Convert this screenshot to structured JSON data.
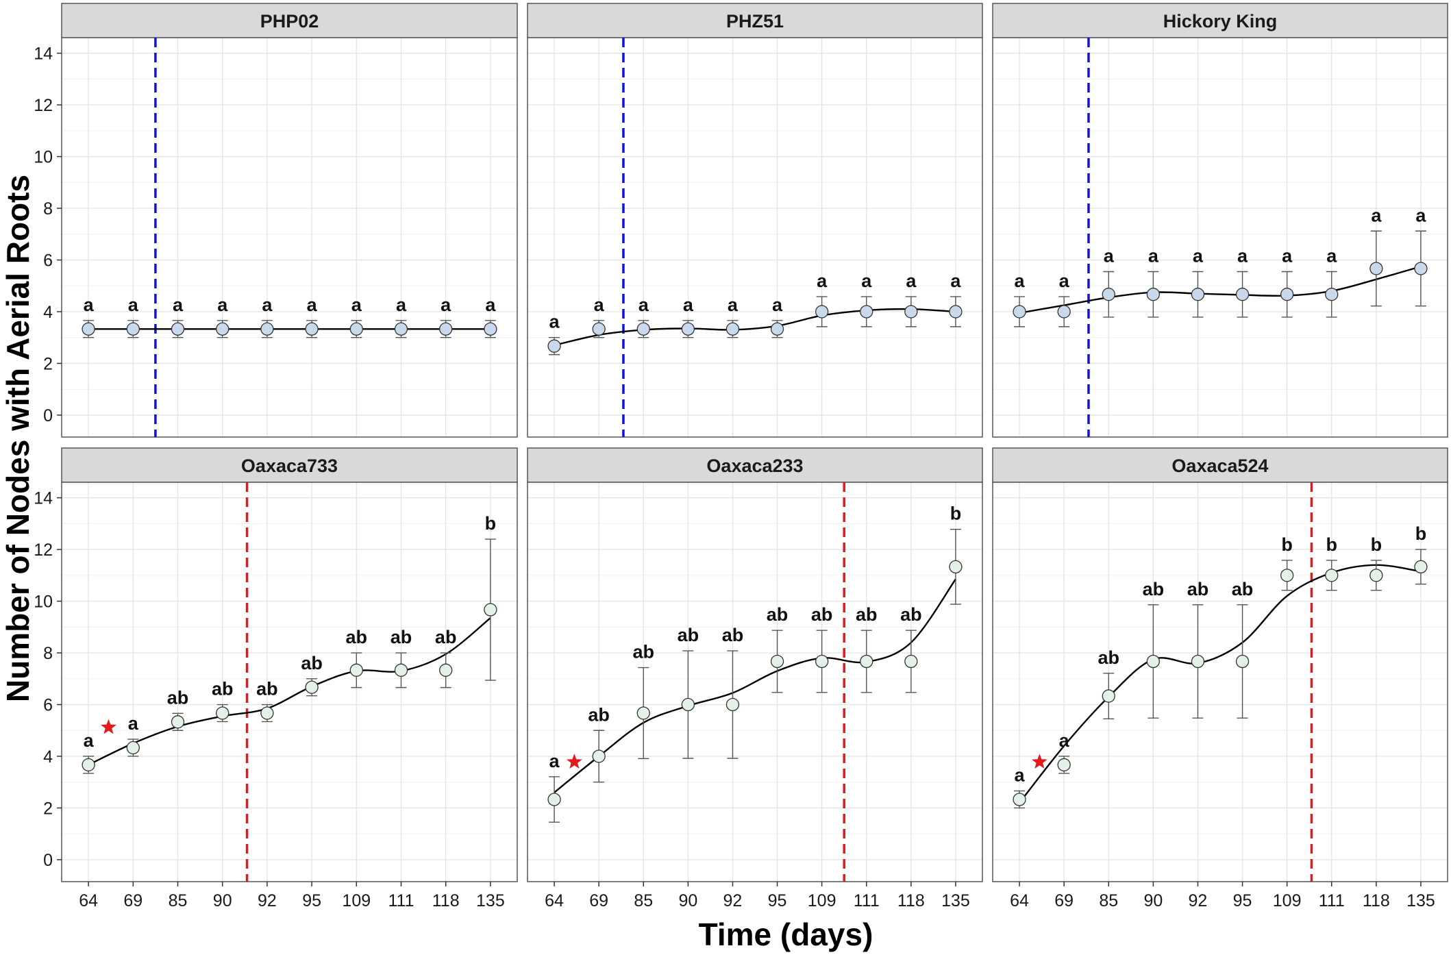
{
  "chart_data": {
    "type": "line",
    "xlabel": "Time (days)",
    "ylabel": "Number of Nodes with Aerial Roots",
    "categories": [
      "64",
      "69",
      "85",
      "90",
      "92",
      "95",
      "109",
      "111",
      "118",
      "135"
    ],
    "ylim": [
      0,
      14
    ],
    "yticks": [
      "0",
      "2",
      "4",
      "6",
      "8",
      "10",
      "12",
      "14"
    ],
    "grid": true,
    "colors": {
      "line": "#000000",
      "errorbar": "#555555",
      "point_fill_top": "#c9d9ec",
      "point_fill_bottom": "#e3f1e6",
      "point_stroke": "#333333",
      "vline_top": "#1010e0",
      "vline_bottom": "#e41a1c",
      "star": "#e41a1c",
      "strip": "#d9d9d9",
      "grid": "#e5e5e5"
    },
    "panels": [
      {
        "name": "PHP02",
        "means": [
          3.33,
          3.33,
          3.33,
          3.33,
          3.33,
          3.33,
          3.33,
          3.33,
          3.33,
          3.33
        ],
        "errors": [
          0.33,
          0.33,
          0.33,
          0.33,
          0.33,
          0.33,
          0.33,
          0.33,
          0.33,
          0.33
        ],
        "smooth": [
          3.33,
          3.33,
          3.33,
          3.33,
          3.33,
          3.33,
          3.33,
          3.33,
          3.33,
          3.33
        ],
        "labels": [
          "a",
          "a",
          "a",
          "a",
          "a",
          "a",
          "a",
          "a",
          "a",
          "a"
        ],
        "vline_index": 1.5,
        "vline_type": "top",
        "star": false
      },
      {
        "name": "PHZ51",
        "means": [
          2.67,
          3.33,
          3.33,
          3.33,
          3.33,
          3.33,
          4.0,
          4.0,
          4.0,
          4.0
        ],
        "errors": [
          0.33,
          0.33,
          0.33,
          0.33,
          0.33,
          0.33,
          0.58,
          0.58,
          0.58,
          0.58
        ],
        "smooth": [
          2.7,
          3.1,
          3.3,
          3.35,
          3.3,
          3.45,
          3.85,
          4.05,
          4.1,
          4.0
        ],
        "labels": [
          "a",
          "a",
          "a",
          "a",
          "a",
          "a",
          "a",
          "a",
          "a",
          "a"
        ],
        "vline_index": 1.55,
        "vline_type": "top",
        "star": false
      },
      {
        "name": "Hickory King",
        "means": [
          4.0,
          4.0,
          4.67,
          4.67,
          4.67,
          4.67,
          4.67,
          4.67,
          5.67,
          5.67
        ],
        "errors": [
          0.58,
          0.58,
          0.88,
          0.88,
          0.88,
          0.88,
          0.88,
          0.88,
          1.45,
          1.45
        ],
        "smooth": [
          3.95,
          4.25,
          4.55,
          4.75,
          4.7,
          4.65,
          4.62,
          4.8,
          5.25,
          5.75
        ],
        "labels": [
          "a",
          "a",
          "a",
          "a",
          "a",
          "a",
          "a",
          "a",
          "a",
          "a"
        ],
        "vline_index": 1.55,
        "vline_type": "top",
        "star": false
      },
      {
        "name": "Oaxaca733",
        "means": [
          3.67,
          4.33,
          5.33,
          5.67,
          5.67,
          6.67,
          7.33,
          7.33,
          7.33,
          9.67
        ],
        "errors": [
          0.33,
          0.33,
          0.33,
          0.33,
          0.33,
          0.33,
          0.67,
          0.67,
          0.67,
          2.73
        ],
        "smooth": [
          3.67,
          4.5,
          5.15,
          5.55,
          5.85,
          6.7,
          7.3,
          7.3,
          7.95,
          9.35
        ],
        "labels": [
          "a",
          "a",
          "ab",
          "ab",
          "ab",
          "ab",
          "ab",
          "ab",
          "ab",
          "b"
        ],
        "vline_index": 3.55,
        "vline_type": "bottom",
        "star": true
      },
      {
        "name": "Oaxaca233",
        "means": [
          2.33,
          4.0,
          5.67,
          6.0,
          6.0,
          7.67,
          7.67,
          7.67,
          7.67,
          11.33
        ],
        "errors": [
          0.88,
          1.0,
          1.76,
          2.08,
          2.08,
          1.2,
          1.2,
          1.2,
          1.2,
          1.45
        ],
        "smooth": [
          2.6,
          4.0,
          5.3,
          5.95,
          6.45,
          7.3,
          7.8,
          7.65,
          8.4,
          10.85
        ],
        "labels": [
          "a",
          "ab",
          "ab",
          "ab",
          "ab",
          "ab",
          "ab",
          "ab",
          "ab",
          "b"
        ],
        "vline_index": 6.5,
        "vline_type": "bottom",
        "star": true
      },
      {
        "name": "Oaxaca524",
        "means": [
          2.33,
          3.67,
          6.33,
          7.67,
          7.67,
          7.67,
          11.0,
          11.0,
          11.0,
          11.33
        ],
        "errors": [
          0.33,
          0.33,
          0.88,
          2.19,
          2.19,
          2.19,
          0.58,
          0.58,
          0.58,
          0.67
        ],
        "smooth": [
          2.2,
          4.4,
          6.3,
          7.75,
          7.6,
          8.4,
          10.2,
          11.1,
          11.4,
          11.15
        ],
        "labels": [
          "a",
          "a",
          "ab",
          "ab",
          "ab",
          "ab",
          "b",
          "b",
          "b",
          "b"
        ],
        "vline_index": 6.55,
        "vline_type": "bottom",
        "star": true
      }
    ]
  }
}
